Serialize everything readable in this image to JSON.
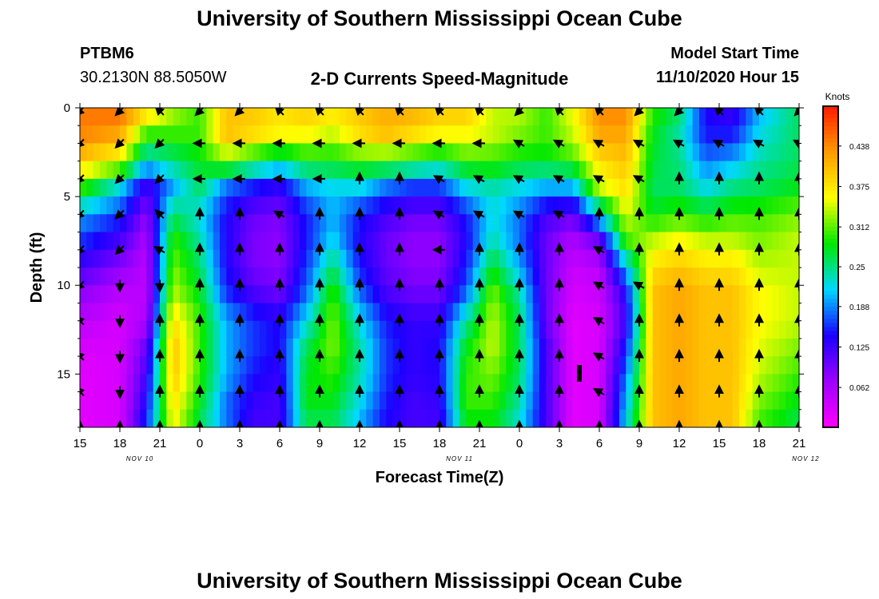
{
  "page": {
    "title_top": "University of Southern Mississippi Ocean Cube",
    "title_bottom": "University of Southern Mississippi Ocean Cube",
    "station": "PTBM6",
    "coords": "30.2130N 88.5050W",
    "subtitle": "2-D Currents Speed-Magnitude",
    "model_start_label": "Model Start Time",
    "model_start_value": "11/10/2020 Hour 15"
  },
  "chart_data": {
    "type": "heatmap",
    "title": "2-D Currents Speed-Magnitude",
    "xlabel": "Forecast Time(Z)",
    "ylabel": "Depth (ft)",
    "colorbar_label": "Knots",
    "x_tick_labels": [
      "15",
      "18",
      "21",
      "0",
      "3",
      "6",
      "9",
      "12",
      "15",
      "18",
      "21",
      "0",
      "3",
      "6",
      "9",
      "12",
      "15",
      "18",
      "21"
    ],
    "date_labels": [
      {
        "text": "NOV 10",
        "x_hour": 19.5
      },
      {
        "text": "NOV 11",
        "x_hour": 43.5
      },
      {
        "text": "NOV 12",
        "x_hour": 69.5
      }
    ],
    "y_ticks": [
      0,
      5,
      10,
      15
    ],
    "ylim": [
      0,
      18
    ],
    "xlim_hours": [
      0,
      54
    ],
    "depths_ft": [
      0,
      1.5,
      3,
      4.5,
      6,
      7.5,
      9,
      10.5,
      12,
      13.5,
      15,
      16.5,
      18
    ],
    "colorbar": {
      "min": 0,
      "max": 0.5,
      "tick_values": [
        0.062,
        0.125,
        0.188,
        0.25,
        0.312,
        0.375,
        0.438
      ],
      "tick_labels": [
        "0.062",
        "0.125",
        "0.188",
        "0.25",
        "0.312",
        "0.375",
        "0.438"
      ],
      "colors": [
        "#ff00ff",
        "#9d00ff",
        "#1a00ff",
        "#00d8ff",
        "#00e800",
        "#ffff00",
        "#ff9a00",
        "#ff1a00"
      ]
    },
    "speed_profiles": [
      {
        "hour": 0,
        "values": [
          0.45,
          0.44,
          0.4,
          0.3,
          0.2,
          0.16,
          0.12,
          0.08,
          0.05,
          0.03,
          0.02,
          0.02,
          0.02
        ]
      },
      {
        "hour": 3,
        "values": [
          0.46,
          0.42,
          0.35,
          0.22,
          0.16,
          0.12,
          0.08,
          0.05,
          0.03,
          0.03,
          0.03,
          0.03,
          0.03
        ]
      },
      {
        "hour": 5,
        "values": [
          0.4,
          0.3,
          0.22,
          0.12,
          0.08,
          0.06,
          0.05,
          0.05,
          0.06,
          0.1,
          0.12,
          0.14,
          0.16
        ]
      },
      {
        "hour": 7,
        "values": [
          0.34,
          0.3,
          0.25,
          0.2,
          0.26,
          0.3,
          0.32,
          0.34,
          0.38,
          0.4,
          0.4,
          0.38,
          0.36
        ]
      },
      {
        "hour": 9,
        "values": [
          0.3,
          0.3,
          0.28,
          0.26,
          0.22,
          0.24,
          0.26,
          0.28,
          0.3,
          0.3,
          0.3,
          0.28,
          0.26
        ]
      },
      {
        "hour": 11,
        "values": [
          0.4,
          0.4,
          0.32,
          0.18,
          0.14,
          0.14,
          0.14,
          0.16,
          0.2,
          0.2,
          0.2,
          0.18,
          0.18
        ]
      },
      {
        "hour": 13,
        "values": [
          0.4,
          0.38,
          0.28,
          0.15,
          0.1,
          0.09,
          0.09,
          0.12,
          0.16,
          0.16,
          0.15,
          0.13,
          0.12
        ]
      },
      {
        "hour": 15,
        "values": [
          0.38,
          0.36,
          0.24,
          0.13,
          0.09,
          0.08,
          0.08,
          0.1,
          0.14,
          0.14,
          0.13,
          0.12,
          0.12
        ]
      },
      {
        "hour": 17,
        "values": [
          0.4,
          0.36,
          0.28,
          0.2,
          0.15,
          0.15,
          0.16,
          0.18,
          0.22,
          0.26,
          0.28,
          0.28,
          0.26
        ]
      },
      {
        "hour": 19,
        "values": [
          0.38,
          0.34,
          0.28,
          0.22,
          0.2,
          0.22,
          0.26,
          0.3,
          0.32,
          0.32,
          0.3,
          0.28,
          0.26
        ]
      },
      {
        "hour": 21,
        "values": [
          0.4,
          0.38,
          0.3,
          0.22,
          0.15,
          0.14,
          0.15,
          0.18,
          0.22,
          0.24,
          0.24,
          0.22,
          0.2
        ]
      },
      {
        "hour": 23,
        "values": [
          0.42,
          0.4,
          0.3,
          0.18,
          0.12,
          0.1,
          0.1,
          0.12,
          0.15,
          0.16,
          0.16,
          0.15,
          0.14
        ]
      },
      {
        "hour": 25,
        "values": [
          0.42,
          0.38,
          0.28,
          0.16,
          0.1,
          0.08,
          0.08,
          0.1,
          0.13,
          0.13,
          0.13,
          0.12,
          0.12
        ]
      },
      {
        "hour": 27,
        "values": [
          0.4,
          0.36,
          0.26,
          0.16,
          0.1,
          0.08,
          0.08,
          0.1,
          0.13,
          0.14,
          0.14,
          0.13,
          0.12
        ]
      },
      {
        "hour": 29,
        "values": [
          0.4,
          0.36,
          0.3,
          0.22,
          0.15,
          0.14,
          0.15,
          0.18,
          0.24,
          0.28,
          0.3,
          0.3,
          0.28
        ]
      },
      {
        "hour": 31,
        "values": [
          0.34,
          0.34,
          0.3,
          0.24,
          0.22,
          0.24,
          0.28,
          0.32,
          0.34,
          0.34,
          0.32,
          0.3,
          0.28
        ]
      },
      {
        "hour": 33,
        "values": [
          0.34,
          0.32,
          0.28,
          0.22,
          0.18,
          0.18,
          0.2,
          0.24,
          0.26,
          0.26,
          0.26,
          0.24,
          0.22
        ]
      },
      {
        "hour": 35,
        "values": [
          0.3,
          0.3,
          0.28,
          0.2,
          0.12,
          0.1,
          0.1,
          0.1,
          0.1,
          0.12,
          0.12,
          0.12,
          0.12
        ]
      },
      {
        "hour": 37,
        "values": [
          0.36,
          0.34,
          0.3,
          0.2,
          0.1,
          0.06,
          0.04,
          0.03,
          0.02,
          0.02,
          0.02,
          0.02,
          0.02
        ]
      },
      {
        "hour": 39,
        "values": [
          0.44,
          0.42,
          0.38,
          0.34,
          0.22,
          0.1,
          0.05,
          0.04,
          0.03,
          0.03,
          0.03,
          0.03,
          0.03
        ]
      },
      {
        "hour": 41,
        "values": [
          0.44,
          0.42,
          0.4,
          0.38,
          0.35,
          0.3,
          0.2,
          0.14,
          0.12,
          0.15,
          0.18,
          0.2,
          0.22
        ]
      },
      {
        "hour": 43,
        "values": [
          0.3,
          0.28,
          0.27,
          0.26,
          0.28,
          0.34,
          0.38,
          0.4,
          0.4,
          0.4,
          0.4,
          0.4,
          0.4
        ]
      },
      {
        "hour": 45,
        "values": [
          0.26,
          0.24,
          0.25,
          0.26,
          0.3,
          0.36,
          0.4,
          0.42,
          0.42,
          0.42,
          0.42,
          0.42,
          0.42
        ]
      },
      {
        "hour": 47,
        "values": [
          0.14,
          0.15,
          0.18,
          0.22,
          0.28,
          0.34,
          0.38,
          0.4,
          0.4,
          0.4,
          0.4,
          0.4,
          0.4
        ]
      },
      {
        "hour": 49,
        "values": [
          0.12,
          0.15,
          0.2,
          0.25,
          0.3,
          0.34,
          0.38,
          0.4,
          0.4,
          0.4,
          0.4,
          0.4,
          0.4
        ]
      },
      {
        "hour": 51,
        "values": [
          0.2,
          0.22,
          0.24,
          0.26,
          0.3,
          0.32,
          0.34,
          0.36,
          0.36,
          0.35,
          0.34,
          0.32,
          0.3
        ]
      },
      {
        "hour": 54,
        "values": [
          0.26,
          0.26,
          0.26,
          0.28,
          0.32,
          0.34,
          0.34,
          0.34,
          0.34,
          0.32,
          0.3,
          0.28,
          0.26
        ]
      }
    ],
    "vector_hours": [
      0,
      3,
      6,
      9,
      12,
      15,
      18,
      21,
      24,
      27,
      30,
      33,
      36,
      39,
      42,
      45,
      48,
      51,
      54
    ],
    "vector_depths_ft": [
      0,
      2,
      4,
      6,
      8,
      10,
      12,
      14,
      16,
      18
    ],
    "vector_directions_deg": [
      [
        225,
        225,
        315,
        225,
        225,
        315,
        315,
        315,
        315,
        315,
        315,
        225,
        315,
        315,
        225,
        225,
        315,
        315,
        225
      ],
      [
        225,
        225,
        225,
        270,
        270,
        270,
        270,
        270,
        270,
        270,
        270,
        300,
        300,
        300,
        300,
        300,
        300,
        300,
        300
      ],
      [
        225,
        225,
        225,
        270,
        270,
        270,
        270,
        0,
        0,
        300,
        300,
        300,
        300,
        300,
        300,
        0,
        0,
        0,
        0
      ],
      [
        225,
        225,
        315,
        0,
        0,
        300,
        0,
        0,
        0,
        300,
        300,
        300,
        300,
        0,
        0,
        0,
        0,
        0,
        0
      ],
      [
        225,
        225,
        300,
        0,
        0,
        0,
        0,
        0,
        0,
        270,
        0,
        0,
        0,
        300,
        0,
        0,
        0,
        0,
        0
      ],
      [
        225,
        180,
        180,
        0,
        0,
        0,
        0,
        0,
        0,
        0,
        0,
        0,
        0,
        300,
        300,
        0,
        0,
        0,
        0
      ],
      [
        315,
        180,
        0,
        0,
        0,
        0,
        0,
        0,
        0,
        0,
        0,
        0,
        0,
        300,
        0,
        0,
        0,
        0,
        0
      ],
      [
        315,
        180,
        0,
        0,
        0,
        0,
        0,
        0,
        0,
        0,
        0,
        0,
        0,
        300,
        0,
        0,
        0,
        0,
        0
      ],
      [
        315,
        180,
        0,
        0,
        0,
        0,
        0,
        0,
        0,
        0,
        0,
        0,
        0,
        300,
        0,
        0,
        0,
        0,
        0
      ],
      [
        0,
        0,
        0,
        0,
        0,
        0,
        0,
        0,
        0,
        0,
        0,
        0,
        0,
        0,
        0,
        0,
        0,
        0,
        0
      ]
    ]
  }
}
